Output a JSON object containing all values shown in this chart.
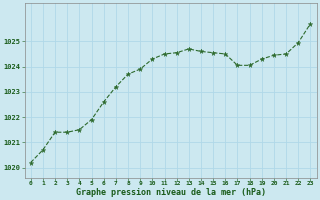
{
  "x": [
    0,
    1,
    2,
    3,
    4,
    5,
    6,
    7,
    8,
    9,
    10,
    11,
    12,
    13,
    14,
    15,
    16,
    17,
    18,
    19,
    20,
    21,
    22,
    23
  ],
  "y": [
    1020.2,
    1020.7,
    1021.4,
    1021.4,
    1021.5,
    1021.9,
    1022.6,
    1023.2,
    1023.7,
    1023.9,
    1024.3,
    1024.5,
    1024.55,
    1024.7,
    1024.6,
    1024.55,
    1024.5,
    1024.05,
    1024.05,
    1024.3,
    1024.45,
    1024.5,
    1024.95,
    1025.7
  ],
  "line_color": "#2d6a2d",
  "marker_color": "#2d6a2d",
  "bg_color": "#cce8f0",
  "grid_color": "#b0d8e8",
  "xlabel": "Graphe pression niveau de la mer (hPa)",
  "xlabel_color": "#1a5c1a",
  "tick_color": "#1a5c1a",
  "ylim_min": 1019.6,
  "ylim_max": 1026.5,
  "yticks": [
    1020,
    1021,
    1022,
    1023,
    1024,
    1025
  ],
  "xticks": [
    0,
    1,
    2,
    3,
    4,
    5,
    6,
    7,
    8,
    9,
    10,
    11,
    12,
    13,
    14,
    15,
    16,
    17,
    18,
    19,
    20,
    21,
    22,
    23
  ]
}
